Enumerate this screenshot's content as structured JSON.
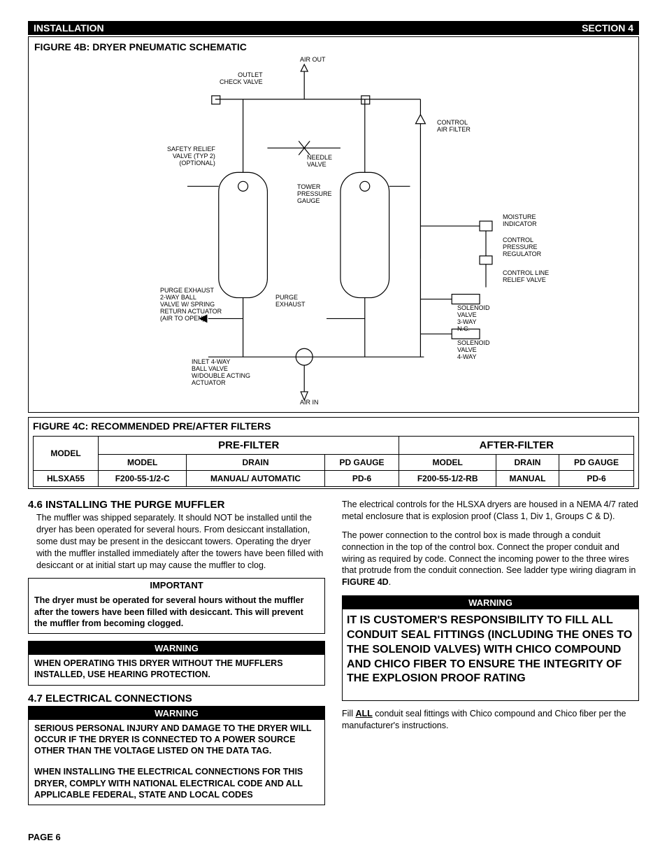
{
  "header": {
    "left": "INSTALLATION",
    "right": "SECTION 4"
  },
  "figure4b": {
    "title": "FIGURE 4B: DRYER PNEUMATIC SCHEMATIC",
    "labels": {
      "air_out": "AIR OUT",
      "outlet_check_valve": "OUTLET\nCHECK VALVE",
      "safety_relief": "SAFETY RELIEF\nVALVE (TYP 2)\n(OPTIONAL)",
      "needle_valve": "NEEDLE\nVALVE",
      "control_air_filter": "CONTROL\nAIR FILTER",
      "tower_pressure_gauge": "TOWER\nPRESSURE\nGAUGE",
      "moisture_indicator": "MOISTURE\nINDICATOR",
      "control_pressure_regulator": "CONTROL\nPRESSURE\nREGULATOR",
      "control_line_relief": "CONTROL LINE\nRELIEF VALVE",
      "purge_exhaust_ball": "PURGE EXHAUST\n2-WAY BALL\nVALVE W/ SPRING\nRETURN ACTUATOR\n(AIR TO OPEN)",
      "purge_exhaust": "PURGE\nEXHAUST",
      "solenoid_3way": "SOLENOID\nVALVE\n3-WAY\nN.C.",
      "solenoid_4way": "SOLENOID\nVALVE\n4-WAY",
      "inlet_4way": "INLET 4-WAY\nBALL VALVE\nW/DOUBLE ACTING\nACTUATOR",
      "air_in": "AIR IN"
    }
  },
  "figure4c": {
    "title": "FIGURE 4C: RECOMMENDED PRE/AFTER FILTERS",
    "pre_header": "PRE-FILTER",
    "after_header": "AFTER-FILTER",
    "cols": {
      "model": "MODEL",
      "drain": "DRAIN",
      "pd": "PD GAUGE"
    },
    "row": {
      "model": "HLSXA55",
      "pre_model": "F200-55-1/2-C",
      "pre_drain": "MANUAL/ AUTOMATIC",
      "pre_pd": "PD-6",
      "after_model": "F200-55-1/2-RB",
      "after_drain": "MANUAL",
      "after_pd": "PD-6"
    }
  },
  "sec46": {
    "title": "4.6 INSTALLING THE PURGE MUFFLER",
    "body": "The muffler was shipped separately.  It should NOT be installed until the dryer has been operated for several hours.  From desiccant installation, some dust may be present in the desiccant towers.  Operating the dryer with the muffler installed immediately after the towers have been filled with desiccant or at initial start up may cause the muffler to clog.",
    "important_title": "IMPORTANT",
    "important_body": "The dryer must be operated for several hours without the muffler after the towers have been filled with desiccant.  This will prevent the muffler from becoming clogged.",
    "warning_title": "WARNING",
    "warning_body": "WHEN OPERATING THIS DRYER WITHOUT THE MUFFLERS INSTALLED, USE HEARING PROTECTION."
  },
  "sec47": {
    "title": "4.7 ELECTRICAL CONNECTIONS",
    "warning_title": "WARNING",
    "warning_body1": "SERIOUS PERSONAL INJURY AND DAMAGE TO THE DRYER WILL OCCUR IF THE DRYER IS CONNECTED TO A POWER SOURCE OTHER THAN THE VOLTAGE LISTED ON THE DATA TAG.",
    "warning_body2": "WHEN INSTALLING THE ELECTRICAL CONNECTIONS FOR THIS DRYER, COMPLY WITH NATIONAL ELECTRICAL CODE AND ALL APPLICABLE FEDERAL, STATE AND LOCAL CODES"
  },
  "rightcol": {
    "p1": "The electrical controls for the HLSXA dryers are housed in a NEMA 4/7 rated metal enclosure that is explosion proof (Class 1, Div 1, Groups C & D).",
    "p2_a": "The power connection to the control box is made through a conduit connection in the top of the control box.  Connect the proper conduit and wiring as required by code.  Connect the incoming power to the three wires that protrude from the conduit connection.  See ladder type wiring diagram in ",
    "p2_b": "FIGURE 4D",
    "p2_c": ".",
    "warning_title": "WARNING",
    "big_warning": "IT IS CUSTOMER'S RESPONSIBILITY TO FILL ALL CONDUIT SEAL FITTINGS  (INCLUDING THE ONES TO THE SOLENOID VALVES) WITH CHICO COMPOUND AND CHICO FIBER TO ENSURE THE INTEGRITY OF THE EXPLOSION PROOF RATING",
    "fill_a": "Fill ",
    "fill_b": "ALL",
    "fill_c": " conduit seal fittings with Chico compound and Chico fiber per the manufacturer's instructions."
  },
  "page": "PAGE 6"
}
